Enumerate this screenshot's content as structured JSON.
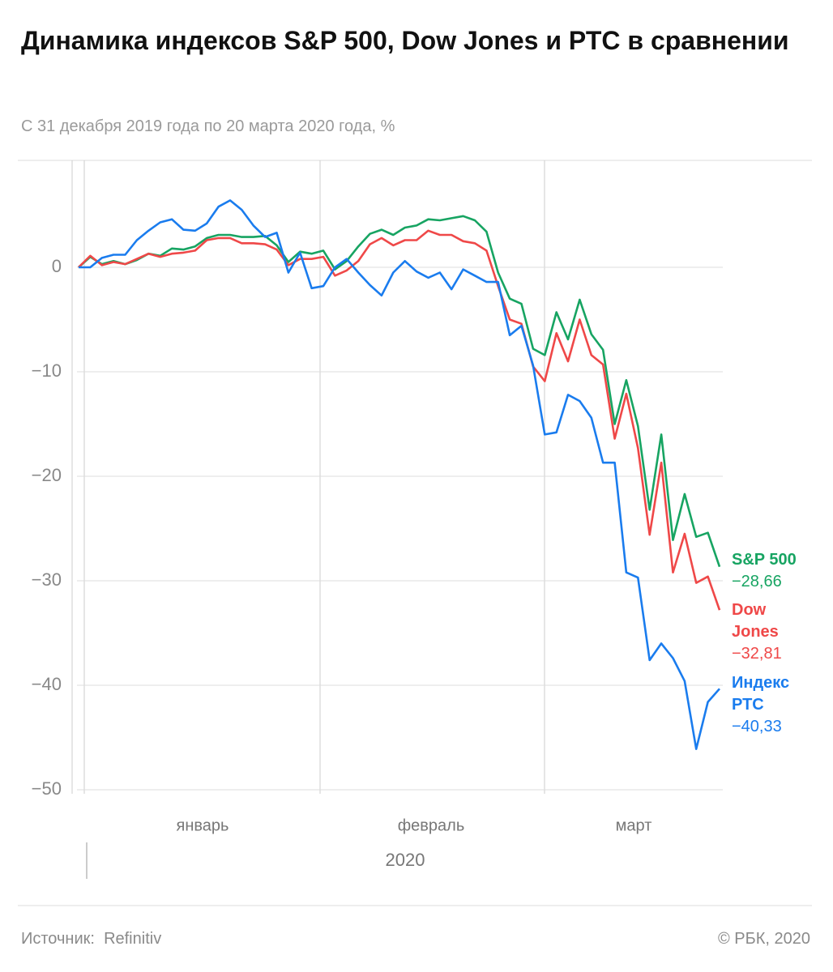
{
  "chart_data": {
    "type": "line",
    "title": "Динамика индексов S&P 500, Dow Jones и РТС в сравнении",
    "subtitle": "С 31 декабря 2019 года по 20 марта 2020 года, %",
    "x_labels": [
      "январь",
      "февраль",
      "март"
    ],
    "x_sublabel": "2020",
    "ylim": [
      -50,
      10
    ],
    "yticks": [
      0,
      {
        "value": -10,
        "label": "−10"
      },
      {
        "value": -20,
        "label": "−20"
      },
      {
        "value": -30,
        "label": "−30"
      },
      {
        "value": -40,
        "label": "−40"
      },
      {
        "value": -50,
        "label": "−50"
      }
    ],
    "grid": true,
    "series": [
      {
        "name": "S&P 500",
        "color": "#17a462",
        "last_label": "−28,66",
        "values": [
          0,
          1.0,
          0.3,
          0.6,
          0.3,
          0.7,
          1.3,
          1.1,
          1.8,
          1.7,
          2.0,
          2.8,
          3.1,
          3.1,
          2.9,
          2.9,
          3.0,
          2.1,
          0.5,
          1.5,
          1.3,
          1.6,
          -0.2,
          0.6,
          2.0,
          3.2,
          3.6,
          3.1,
          3.8,
          4.0,
          4.6,
          4.5,
          4.7,
          4.9,
          4.5,
          3.4,
          -0.5,
          -3.0,
          -3.5,
          -7.8,
          -8.4,
          -4.3,
          -6.9,
          -3.1,
          -6.4,
          -7.9,
          -15.0,
          -10.8,
          -15.2,
          -23.2,
          -16.0,
          -26.1,
          -21.7,
          -25.8,
          -25.4,
          -28.66
        ]
      },
      {
        "name": "Dow Jones",
        "color": "#ef4848",
        "last_label": "−32,81",
        "values": [
          0,
          1.1,
          0.2,
          0.5,
          0.3,
          0.8,
          1.3,
          1.0,
          1.3,
          1.4,
          1.6,
          2.6,
          2.8,
          2.8,
          2.3,
          2.3,
          2.2,
          1.7,
          0.2,
          0.8,
          0.8,
          1.0,
          -0.8,
          -0.3,
          0.6,
          2.2,
          2.8,
          2.1,
          2.6,
          2.6,
          3.5,
          3.1,
          3.1,
          2.5,
          2.3,
          1.6,
          -1.8,
          -5.0,
          -5.4,
          -9.5,
          -10.9,
          -6.3,
          -9.0,
          -5.0,
          -8.4,
          -9.3,
          -16.4,
          -12.1,
          -17.3,
          -25.6,
          -18.7,
          -29.2,
          -25.5,
          -30.2,
          -29.6,
          -32.81
        ]
      },
      {
        "name": "Индекс РТС",
        "color": "#1a7cee",
        "last_label": "−40,33",
        "values": [
          0,
          0,
          0.9,
          1.2,
          1.2,
          2.6,
          3.5,
          4.3,
          4.6,
          3.6,
          3.5,
          4.2,
          5.8,
          6.4,
          5.5,
          4.0,
          2.9,
          3.3,
          -0.5,
          1.4,
          -2.0,
          -1.8,
          0,
          0.8,
          -0.5,
          -1.7,
          -2.7,
          -0.5,
          0.6,
          -0.4,
          -1.0,
          -0.5,
          -2.1,
          -0.2,
          -0.8,
          -1.4,
          -1.4,
          -6.5,
          -5.6,
          -9.4,
          -16.0,
          -15.8,
          -12.2,
          -12.8,
          -14.4,
          -18.7,
          -18.7,
          -29.2,
          -29.7,
          -37.6,
          -36.0,
          -37.4,
          -39.6,
          -46.1,
          -41.6,
          -40.33
        ]
      }
    ],
    "source_label": "Источник:",
    "source": "Refinitiv",
    "copyright": "© РБК, 2020"
  }
}
